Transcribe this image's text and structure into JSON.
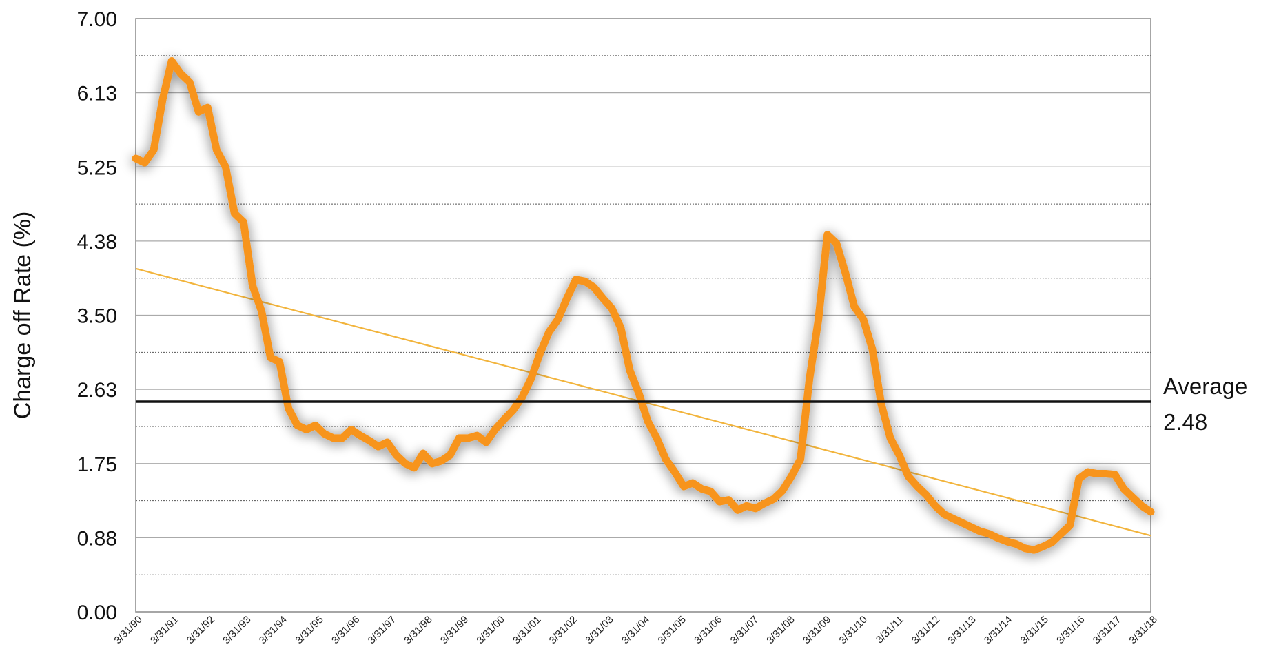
{
  "chart_data": {
    "type": "line",
    "title": "",
    "ylabel": "Charge off Rate (%)",
    "xlabel": "",
    "ylim": [
      0,
      7
    ],
    "y_ticks": [
      "0.00",
      "0.88",
      "1.75",
      "2.63",
      "3.50",
      "4.38",
      "5.25",
      "6.13",
      "7.00"
    ],
    "x_tick_labels": [
      "3/31/90",
      "3/31/91",
      "3/31/92",
      "3/31/93",
      "3/31/94",
      "3/31/95",
      "3/31/96",
      "3/31/97",
      "3/31/98",
      "3/31/99",
      "3/31/00",
      "3/31/01",
      "3/31/02",
      "3/31/03",
      "3/31/04",
      "3/31/05",
      "3/31/06",
      "3/31/07",
      "3/31/08",
      "3/31/09",
      "3/31/10",
      "3/31/11",
      "3/31/12",
      "3/31/13",
      "3/31/14",
      "3/31/15",
      "3/31/16",
      "3/31/17",
      "3/31/18"
    ],
    "grid": true,
    "series": [
      {
        "color": "#F7941D",
        "values": [
          5.35,
          5.3,
          5.45,
          6.05,
          6.5,
          6.35,
          6.25,
          5.9,
          5.95,
          5.45,
          5.25,
          4.7,
          4.6,
          3.85,
          3.55,
          3.0,
          2.95,
          2.4,
          2.2,
          2.15,
          2.2,
          2.1,
          2.05,
          2.05,
          2.15,
          2.08,
          2.02,
          1.95,
          2.0,
          1.85,
          1.75,
          1.7,
          1.87,
          1.75,
          1.78,
          1.85,
          2.05,
          2.05,
          2.08,
          2.0,
          2.15,
          2.27,
          2.38,
          2.53,
          2.75,
          3.05,
          3.3,
          3.45,
          3.7,
          3.92,
          3.9,
          3.83,
          3.7,
          3.58,
          3.35,
          2.85,
          2.58,
          2.25,
          2.05,
          1.8,
          1.65,
          1.48,
          1.52,
          1.45,
          1.42,
          1.3,
          1.32,
          1.2,
          1.25,
          1.22,
          1.28,
          1.33,
          1.43,
          1.6,
          1.8,
          2.75,
          3.45,
          4.45,
          4.35,
          4.0,
          3.6,
          3.45,
          3.1,
          2.45,
          2.05,
          1.85,
          1.6,
          1.48,
          1.38,
          1.25,
          1.15,
          1.1,
          1.05,
          1.0,
          0.95,
          0.92,
          0.87,
          0.83,
          0.8,
          0.75,
          0.73,
          0.77,
          0.82,
          0.92,
          1.02,
          1.57,
          1.65,
          1.63,
          1.63,
          1.62,
          1.45,
          1.35,
          1.25,
          1.18
        ]
      }
    ],
    "trend_line": {
      "color": "#F2B43C",
      "start_value": 4.05,
      "end_value": 0.9
    },
    "average_line": {
      "value": 2.48,
      "label": "Average",
      "value_label": "2.48",
      "color": "#111111"
    }
  }
}
